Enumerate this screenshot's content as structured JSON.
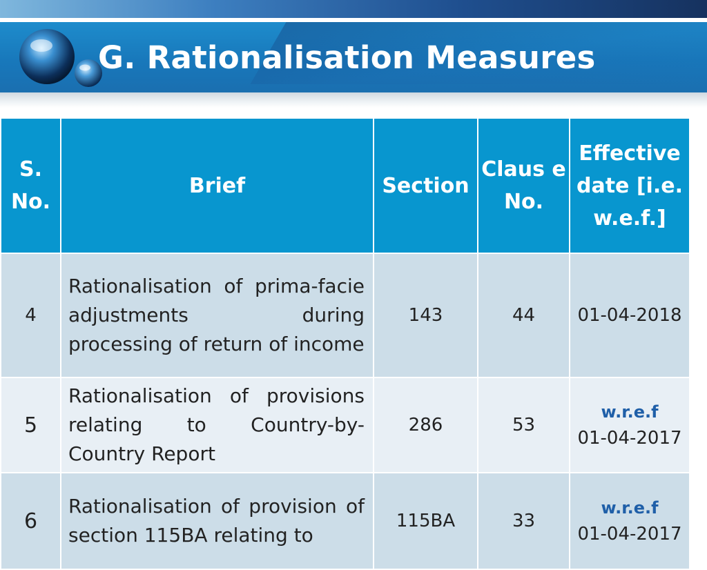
{
  "slide": {
    "title": "G. Rationalisation Measures"
  },
  "table": {
    "headers": {
      "sno": "S. No.",
      "brief": "Brief",
      "section": "Section",
      "clause": "Claus e No.",
      "effective": "Effective date [i.e. w.e.f.]"
    },
    "rows": [
      {
        "sno": "4",
        "brief": "Rationalisation of prima-facie adjustments during processing of return of income",
        "section": "143",
        "clause": "44",
        "wref": "",
        "date": "01-04-2018"
      },
      {
        "sno": "5",
        "brief": "Rationalisation of provisions relating to Country-by-Country Report",
        "section": "286",
        "clause": "53",
        "wref": "w.r.e.f",
        "date": "01-04-2017"
      },
      {
        "sno": "6",
        "brief": "Rationalisation of provision of section 115BA relating to",
        "section": "115BA",
        "clause": "33",
        "wref": "w.r.e.f",
        "date": "01-04-2017"
      }
    ]
  },
  "colors": {
    "header_bg": "#0896cf",
    "row_dark": "#ccdde8",
    "row_light": "#e8eff5",
    "wref_text": "#1f5fa8"
  }
}
